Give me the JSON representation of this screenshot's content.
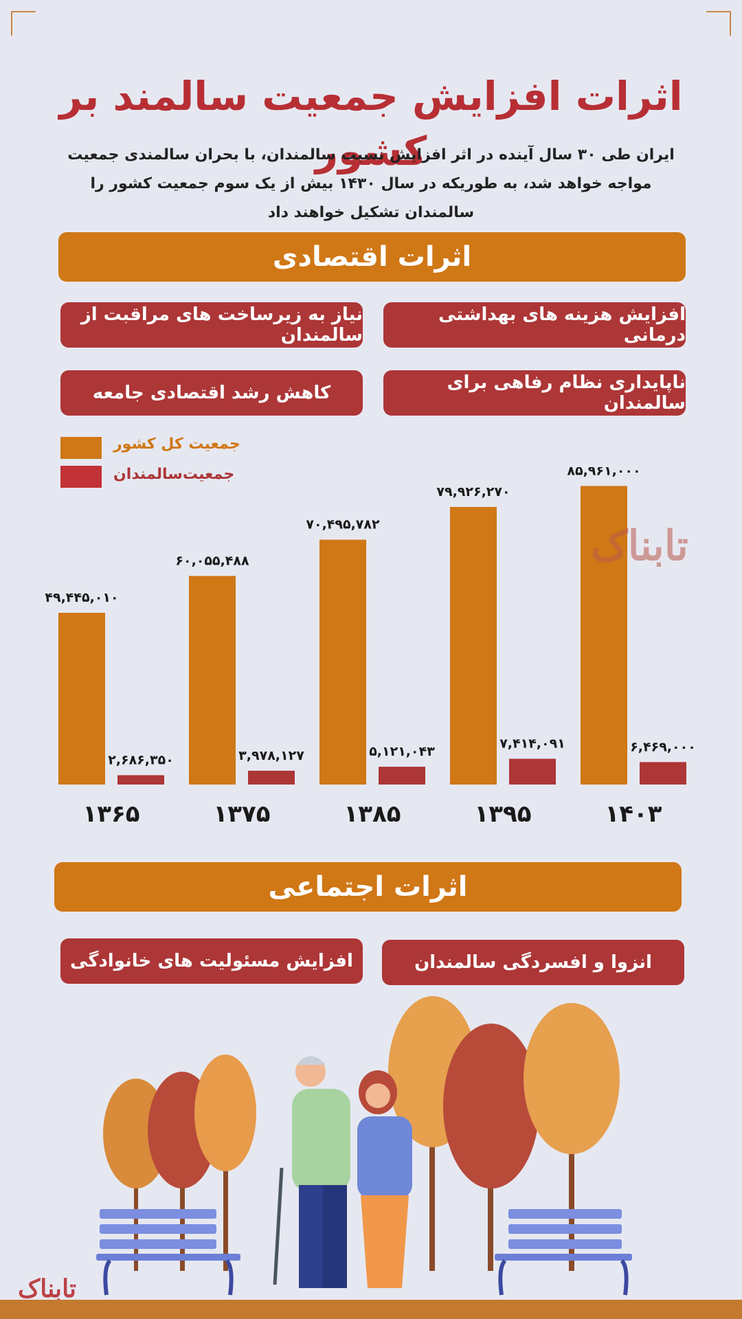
{
  "title": "اثرات افزایش جمعیت سالمند بر کشور",
  "intro": "ایران طی ۳۰ سال آینده در اثر افزایش نسبت سالمندان، با بحران سالمندی جمعیت مواجه خواهد شد، به طوریکه در سال ۱۴۳۰ بیش از یک سوم جمعیت کشور را سالمندان تشکیل خواهند داد",
  "economic": {
    "heading": "اثرات اقتصادی",
    "items": [
      "افزایش هزینه های بهداشتی درمانی",
      "نیاز به زیرساخت های مراقبت از سالمندان",
      "ناپایداری نظام رفاهی برای سالمندان",
      "کاهش رشد اقتصادی جامعه"
    ]
  },
  "social": {
    "heading": "اثرات اجتماعی",
    "items": [
      "انزوا و افسردگی سالمندان",
      "افزایش مسئولیت های خانوادگی"
    ]
  },
  "watermark": "تابناک",
  "colors": {
    "total": "#d07716",
    "elderly": "#ad3637",
    "title": "#b72f35"
  },
  "chart_data": {
    "type": "bar",
    "categories": [
      "۱۳۶۵",
      "۱۳۷۵",
      "۱۳۸۵",
      "۱۳۹۵",
      "۱۴۰۳"
    ],
    "series": [
      {
        "name": "جمعیت کل کشور",
        "color": "#d07716",
        "values": [
          49445010,
          60055488,
          70495782,
          79926270,
          85961000
        ],
        "labels": [
          "۴۹,۴۴۵,۰۱۰",
          "۶۰,۰۵۵,۴۸۸",
          "۷۰,۴۹۵,۷۸۲",
          "۷۹,۹۲۶,۲۷۰",
          "۸۵,۹۶۱,۰۰۰"
        ]
      },
      {
        "name": "جمعیت‌سالمندان",
        "color": "#ad3637",
        "values": [
          2686350,
          3978127,
          5121043,
          7414091,
          6469000
        ],
        "labels": [
          "۲,۶۸۶,۳۵۰",
          "۳,۹۷۸,۱۲۷",
          "۵,۱۲۱,۰۴۳",
          "۷,۴۱۴,۰۹۱",
          "۶,۴۶۹,۰۰۰"
        ]
      }
    ],
    "legend": "top-left",
    "grid": false
  }
}
